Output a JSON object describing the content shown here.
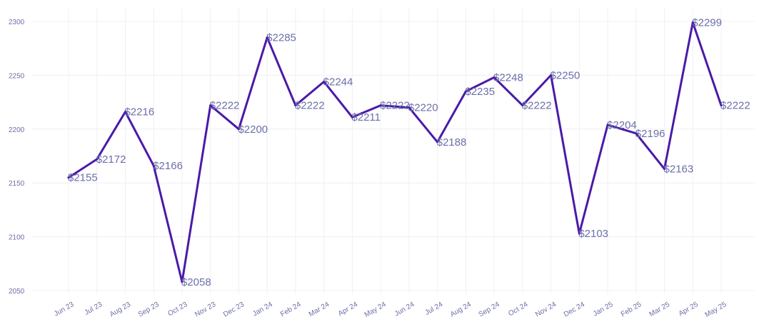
{
  "chart_data": {
    "type": "line",
    "title": "",
    "xlabel": "",
    "ylabel": "",
    "categories": [
      "Jun 23",
      "Jul 23",
      "Aug 23",
      "Sep 23",
      "Oct 23",
      "Nov 23",
      "Dec 23",
      "Jan 24",
      "Feb 24",
      "Mar 24",
      "Apr 24",
      "May 24",
      "Jun 24",
      "Jul 24",
      "Aug 24",
      "Sep 24",
      "Oct 24",
      "Nov 24",
      "Dec 24",
      "Jan 25",
      "Feb 25",
      "Mar 25",
      "Apr 25",
      "May 25"
    ],
    "series": [
      {
        "values": [
          2155,
          2172,
          2216,
          2166,
          2058,
          2222,
          2200,
          2285,
          2222,
          2244,
          2211,
          2222,
          2220,
          2188,
          2235,
          2248,
          2222,
          2250,
          2103,
          2204,
          2196,
          2163,
          2299,
          2222
        ],
        "data_labels": [
          "$2155",
          "$2172",
          "$2216",
          "$2166",
          "$2058",
          "$2222",
          "$2200",
          "$2285",
          "$2222",
          "$2244",
          "$2211",
          "$2222",
          "$2220",
          "$2188",
          "$2235",
          "$2248",
          "$2222",
          "$2250",
          "$2103",
          "$2204",
          "$2196",
          "$2163",
          "$2299",
          "$2222"
        ]
      }
    ],
    "y_ticks": [
      "2050",
      "2100",
      "2150",
      "2200",
      "2250",
      "2300"
    ],
    "ylim": [
      2050,
      2300
    ],
    "grid": true,
    "legend": "none",
    "colors": {
      "line": "#4a1aa8",
      "text": "#6b6fa8",
      "grid": "#f0f0f6"
    }
  }
}
